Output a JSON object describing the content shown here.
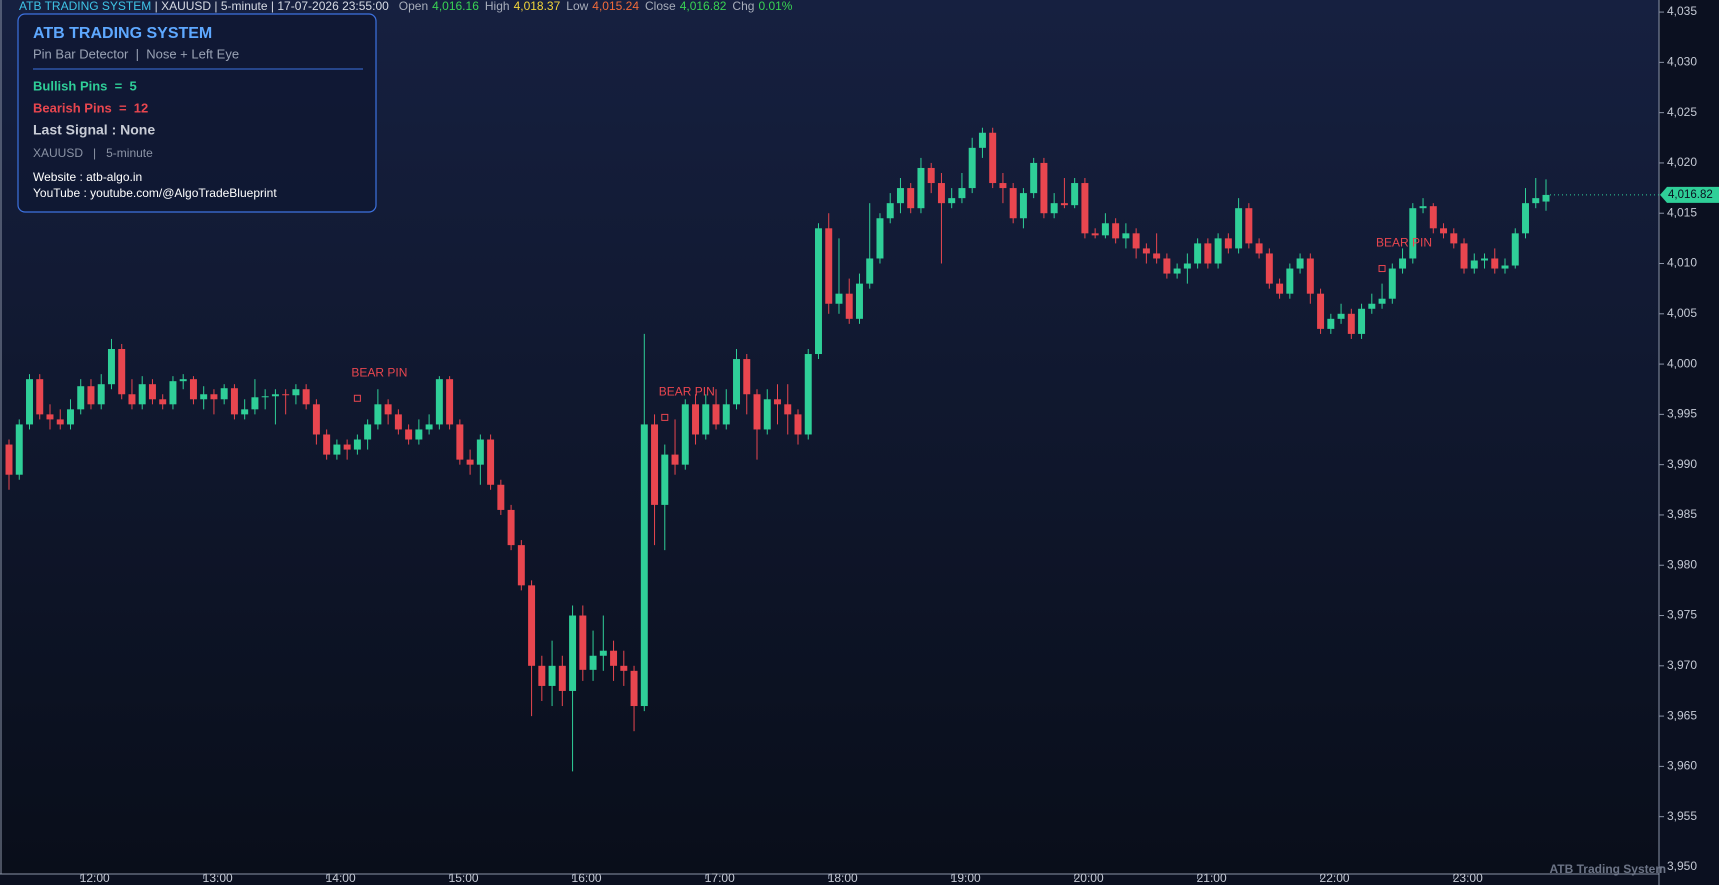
{
  "chart_data": {
    "type": "candlestick",
    "header": {
      "system": "ATB TRADING SYSTEM",
      "symbol": "XAUUSD",
      "timeframe": "5-minute",
      "datetime": "17-07-2026 23:55:00",
      "open_label": "Open",
      "open": "4,016.16",
      "high_label": "High",
      "high": "4,018.37",
      "low_label": "Low",
      "low": "4,015.24",
      "close_label": "Close",
      "close": "4,016.82",
      "chg_label": "Chg",
      "chg": "0.01%"
    },
    "panel": {
      "title": "ATB TRADING SYSTEM",
      "subtitle": "Pin Bar Detector  |  Nose + Left Eye",
      "bullish": "Bullish Pins  =  5",
      "bearish": "Bearish Pins  =  12",
      "last_signal": "Last Signal : None",
      "instrument": "XAUUSD   |   5-minute",
      "website": "Website : atb-algo.in",
      "youtube": "YouTube : youtube.com/@AlgoTradeBlueprint"
    },
    "watermark": "ATB Trading System",
    "last_price_label": "4,016.82",
    "up_color": "#2fcf98",
    "down_color": "#e8464f",
    "categories": [
      null,
      null,
      null,
      null,
      null,
      null,
      null,
      "12:00",
      null,
      null,
      null,
      null,
      null,
      null,
      null,
      null,
      null,
      null,
      null,
      "13:00",
      null,
      null,
      null,
      null,
      null,
      null,
      null,
      null,
      null,
      null,
      null,
      "14:00",
      null,
      null,
      null,
      null,
      null,
      null,
      null,
      null,
      null,
      null,
      null,
      "15:00",
      null,
      null,
      null,
      null,
      null,
      null,
      null,
      null,
      null,
      null,
      null,
      "16:00",
      null,
      null,
      null,
      null,
      null,
      null,
      null,
      null,
      null,
      null,
      null,
      null,
      "17:00",
      null,
      null,
      null,
      null,
      null,
      null,
      null,
      null,
      null,
      null,
      null,
      "18:00",
      null,
      null,
      null,
      null,
      null,
      null,
      null,
      null,
      null,
      null,
      null,
      "19:00",
      null,
      null,
      null,
      null,
      null,
      null,
      null,
      null,
      null,
      null,
      null,
      "20:00",
      null,
      null,
      null,
      null,
      null,
      null,
      null,
      null,
      null,
      null,
      null,
      "21:00",
      null,
      null,
      null,
      null,
      null,
      null,
      null,
      null,
      null,
      null,
      null,
      "22:00",
      null,
      null,
      null,
      null,
      null,
      null,
      null,
      null,
      null,
      null,
      null,
      null,
      "23:00",
      null,
      null,
      null,
      null,
      null,
      null,
      null,
      null,
      null
    ],
    "candles": [
      [
        3992,
        3992.5,
        3987.5,
        3989
      ],
      [
        3989,
        3994.5,
        3988.5,
        3994
      ],
      [
        3994,
        3999,
        3993.5,
        3998.5
      ],
      [
        3998.5,
        3999,
        3994.5,
        3995
      ],
      [
        3995,
        3996,
        3993.5,
        3994.5
      ],
      [
        3994.5,
        3995.5,
        3993.5,
        3994
      ],
      [
        3994,
        3996.5,
        3993.5,
        3995.5
      ],
      [
        3995.5,
        3998.5,
        3995,
        3997.8
      ],
      [
        3997.8,
        3998.5,
        3995.5,
        3996
      ],
      [
        3996,
        3999,
        3995.5,
        3998
      ],
      [
        3998,
        4002.5,
        3997.5,
        4001.5
      ],
      [
        4001.5,
        4002,
        3996.5,
        3997
      ],
      [
        3997,
        3998.5,
        3995.5,
        3996
      ],
      [
        3996,
        3998.8,
        3995.5,
        3998
      ],
      [
        3998,
        3998.5,
        3996,
        3996.5
      ],
      [
        3996.5,
        3997,
        3995.5,
        3996
      ],
      [
        3996,
        3998.8,
        3995.5,
        3998.3
      ],
      [
        3998.3,
        3999,
        3997.5,
        3998.5
      ],
      [
        3998.5,
        3998.8,
        3996,
        3996.5
      ],
      [
        3996.5,
        3997.8,
        3995.5,
        3997
      ],
      [
        3997,
        3997.5,
        3995,
        3996.5
      ],
      [
        3996.5,
        3998,
        3996,
        3997.6
      ],
      [
        3997.6,
        3998,
        3994.5,
        3995
      ],
      [
        3995,
        3996.5,
        3994.5,
        3995.5
      ],
      [
        3995.5,
        3998.5,
        3995,
        3996.7
      ],
      [
        3996.7,
        3997.5,
        3995.5,
        3996.8
      ],
      [
        3996.8,
        3997.5,
        3994,
        3997
      ],
      [
        3997,
        3997.5,
        3995,
        3996.9
      ],
      [
        3996.9,
        3998,
        3996,
        3997.5
      ],
      [
        3997.5,
        3998,
        3995.5,
        3996
      ],
      [
        3996,
        3996.5,
        3992,
        3993
      ],
      [
        3993,
        3993.5,
        3990.5,
        3991
      ],
      [
        3991,
        3992.5,
        3990.5,
        3992
      ],
      [
        3992,
        3992.5,
        3990.5,
        3991.5
      ],
      [
        3991.5,
        3993,
        3991,
        3992.5
      ],
      [
        3992.5,
        3994.5,
        3991.5,
        3994
      ],
      [
        3994,
        3997.5,
        3993.5,
        3996
      ],
      [
        3996,
        3996.5,
        3994,
        3995
      ],
      [
        3995,
        3995.5,
        3993,
        3993.5
      ],
      [
        3993.5,
        3994,
        3992,
        3992.5
      ],
      [
        3992.5,
        3994.5,
        3992,
        3993.5
      ],
      [
        3993.5,
        3995,
        3993,
        3994
      ],
      [
        3994,
        3998.8,
        3993.5,
        3998.5
      ],
      [
        3998.5,
        3998.8,
        3993.5,
        3994
      ],
      [
        3994,
        3994.5,
        3990,
        3990.5
      ],
      [
        3990.5,
        3991.5,
        3989,
        3990
      ],
      [
        3990,
        3993,
        3988,
        3992.5
      ],
      [
        3992.5,
        3993,
        3987.5,
        3988
      ],
      [
        3988,
        3988.5,
        3985,
        3985.5
      ],
      [
        3985.5,
        3986,
        3981.5,
        3982
      ],
      [
        3982,
        3982.5,
        3977.5,
        3978
      ],
      [
        3978,
        3978.5,
        3965,
        3970
      ],
      [
        3970,
        3971,
        3966.5,
        3968
      ],
      [
        3968,
        3972.5,
        3966,
        3970
      ],
      [
        3970,
        3971,
        3966,
        3967.5
      ],
      [
        3967.5,
        3976,
        3959.5,
        3975
      ],
      [
        3975,
        3976,
        3968.5,
        3969.6
      ],
      [
        3969.6,
        3973.5,
        3968.5,
        3971
      ],
      [
        3971,
        3975,
        3969.5,
        3971.5
      ],
      [
        3971.5,
        3972.5,
        3968.5,
        3970
      ],
      [
        3970,
        3971.5,
        3968,
        3969.5
      ],
      [
        3969.5,
        3970,
        3963.5,
        3966
      ],
      [
        3966,
        4003,
        3965.5,
        3994
      ],
      [
        3994,
        3995,
        3982,
        3986
      ],
      [
        3986,
        3992,
        3981.5,
        3991
      ],
      [
        3991,
        3994.5,
        3989,
        3990
      ],
      [
        3990,
        3996.5,
        3989.5,
        3996
      ],
      [
        3996,
        3997,
        3992,
        3993
      ],
      [
        3993,
        3997,
        3992.5,
        3996
      ],
      [
        3996,
        3997.5,
        3993.5,
        3994
      ],
      [
        3994,
        3997.5,
        3993.5,
        3996
      ],
      [
        3996,
        4001.5,
        3995.5,
        4000.5
      ],
      [
        4000.5,
        4001,
        3995,
        3997
      ],
      [
        3997,
        3997.5,
        3990.5,
        3993.5
      ],
      [
        3993.5,
        3997.5,
        3993,
        3996.5
      ],
      [
        3996.5,
        3998,
        3994,
        3996
      ],
      [
        3996,
        3998,
        3993,
        3995
      ],
      [
        3995,
        3995.5,
        3992,
        3993
      ],
      [
        3993,
        4001.5,
        3992.5,
        4001
      ],
      [
        4001,
        4014,
        4000.5,
        4013.5
      ],
      [
        4013.5,
        4015,
        4005,
        4006
      ],
      [
        4006,
        4012.5,
        4005,
        4007
      ],
      [
        4007,
        4008.5,
        4004,
        4004.5
      ],
      [
        4004.5,
        4009,
        4004,
        4008
      ],
      [
        4008,
        4016,
        4007.5,
        4010.5
      ],
      [
        4010.5,
        4015,
        4010,
        4014.5
      ],
      [
        4014.5,
        4017,
        4014,
        4016
      ],
      [
        4016,
        4018.5,
        4015,
        4017.5
      ],
      [
        4017.5,
        4018,
        4015,
        4015.5
      ],
      [
        4015.5,
        4020.5,
        4015,
        4019.5
      ],
      [
        4019.5,
        4020,
        4017,
        4018
      ],
      [
        4018,
        4019,
        4010,
        4016
      ],
      [
        4016,
        4017.5,
        4015.5,
        4016.5
      ],
      [
        4016.5,
        4019,
        4016,
        4017.5
      ],
      [
        4017.5,
        4022.5,
        4017,
        4021.5
      ],
      [
        4021.5,
        4023.5,
        4020.5,
        4023
      ],
      [
        4023,
        4023.5,
        4017.5,
        4018
      ],
      [
        4018,
        4019,
        4016,
        4017.5
      ],
      [
        4017.5,
        4018,
        4014,
        4014.5
      ],
      [
        4014.5,
        4017.5,
        4013.5,
        4017
      ],
      [
        4017,
        4020.5,
        4016.5,
        4020
      ],
      [
        4020,
        4020.5,
        4014.5,
        4015
      ],
      [
        4015,
        4017,
        4014.5,
        4016
      ],
      [
        4016,
        4018.5,
        4015.5,
        4015.8
      ],
      [
        4015.8,
        4018.5,
        4015.5,
        4018
      ],
      [
        4018,
        4018.5,
        4012.5,
        4013
      ],
      [
        4013,
        4013.5,
        4012.5,
        4012.8
      ],
      [
        4012.8,
        4015,
        4012.5,
        4014
      ],
      [
        4014,
        4014.5,
        4012,
        4012.5
      ],
      [
        4012.5,
        4014,
        4011.5,
        4013
      ],
      [
        4013,
        4013.5,
        4010.5,
        4011.5
      ],
      [
        4011.5,
        4012,
        4010,
        4011
      ],
      [
        4011,
        4013,
        4010,
        4010.5
      ],
      [
        4010.5,
        4011,
        4008.5,
        4009
      ],
      [
        4009,
        4010,
        4008.5,
        4009.5
      ],
      [
        4009.5,
        4011,
        4008,
        4010
      ],
      [
        4010,
        4012.5,
        4009.5,
        4012
      ],
      [
        4012,
        4012.5,
        4009.5,
        4010
      ],
      [
        4010,
        4013,
        4009.5,
        4012.5
      ],
      [
        4012.5,
        4013,
        4011,
        4011.5
      ],
      [
        4011.5,
        4016.5,
        4011,
        4015.5
      ],
      [
        4015.5,
        4016,
        4011.5,
        4012
      ],
      [
        4012,
        4012.5,
        4010.5,
        4011
      ],
      [
        4011,
        4011.5,
        4007.5,
        4008
      ],
      [
        4008,
        4008.5,
        4006.5,
        4007
      ],
      [
        4007,
        4010,
        4006.5,
        4009.5
      ],
      [
        4009.5,
        4011,
        4009,
        4010.5
      ],
      [
        4010.5,
        4011,
        4006,
        4007
      ],
      [
        4007,
        4007.5,
        4003,
        4003.5
      ],
      [
        4003.5,
        4005,
        4003,
        4004.5
      ],
      [
        4004.5,
        4006,
        4004,
        4005
      ],
      [
        4005,
        4005.5,
        4002.5,
        4003
      ],
      [
        4003,
        4006,
        4002.5,
        4005.5
      ],
      [
        4005.5,
        4007,
        4005,
        4006
      ],
      [
        4006,
        4008,
        4005.5,
        4006.5
      ],
      [
        4006.5,
        4010,
        4006,
        4009.5
      ],
      [
        4009.5,
        4011.5,
        4009,
        4010.5
      ],
      [
        4010.5,
        4016,
        4010,
        4015.5
      ],
      [
        4015.5,
        4016.5,
        4015,
        4015.7
      ],
      [
        4015.7,
        4016,
        4013,
        4013.5
      ],
      [
        4013.5,
        4014,
        4012.5,
        4013
      ],
      [
        4013,
        4013.5,
        4011.5,
        4012
      ],
      [
        4012,
        4012.5,
        4009,
        4009.5
      ],
      [
        4009.5,
        4011,
        4009,
        4010.3
      ],
      [
        4010.3,
        4011,
        4009.5,
        4010.5
      ],
      [
        4010.5,
        4011.5,
        4009,
        4009.5
      ],
      [
        4009.5,
        4010.5,
        4009,
        4009.8
      ],
      [
        4009.8,
        4013.5,
        4009.5,
        4013
      ],
      [
        4013,
        4017.5,
        4012.5,
        4016
      ],
      [
        4016,
        4018.5,
        4015.5,
        4016.5
      ],
      [
        4016.16,
        4018.37,
        4015.24,
        4016.82
      ]
    ],
    "annotations": [
      {
        "text": "BEAR PIN",
        "index": 34,
        "value": 3996.6
      },
      {
        "text": "BEAR PIN",
        "index": 64,
        "value": 3994.7
      },
      {
        "text": "BEAR PIN",
        "index": 134,
        "value": 4009.5
      }
    ],
    "ylim": [
      3949.3,
      4036.2
    ],
    "yticks": [
      {
        "value": 3950,
        "label": "3,950"
      },
      {
        "value": 3955,
        "label": "3,955"
      },
      {
        "value": 3960,
        "label": "3,960"
      },
      {
        "value": 3965,
        "label": "3,965"
      },
      {
        "value": 3970,
        "label": "3,970"
      },
      {
        "value": 3975,
        "label": "3,975"
      },
      {
        "value": 3980,
        "label": "3,980"
      },
      {
        "value": 3985,
        "label": "3,985"
      },
      {
        "value": 3990,
        "label": "3,990"
      },
      {
        "value": 3995,
        "label": "3,995"
      },
      {
        "value": 4000,
        "label": "4,000"
      },
      {
        "value": 4005,
        "label": "4,005"
      },
      {
        "value": 4010,
        "label": "4,010"
      },
      {
        "value": 4015,
        "label": "4,015"
      },
      {
        "value": 4020,
        "label": "4,020"
      },
      {
        "value": 4025,
        "label": "4,025"
      },
      {
        "value": 4030,
        "label": "4,030"
      },
      {
        "value": 4035,
        "label": "4,035"
      }
    ]
  }
}
